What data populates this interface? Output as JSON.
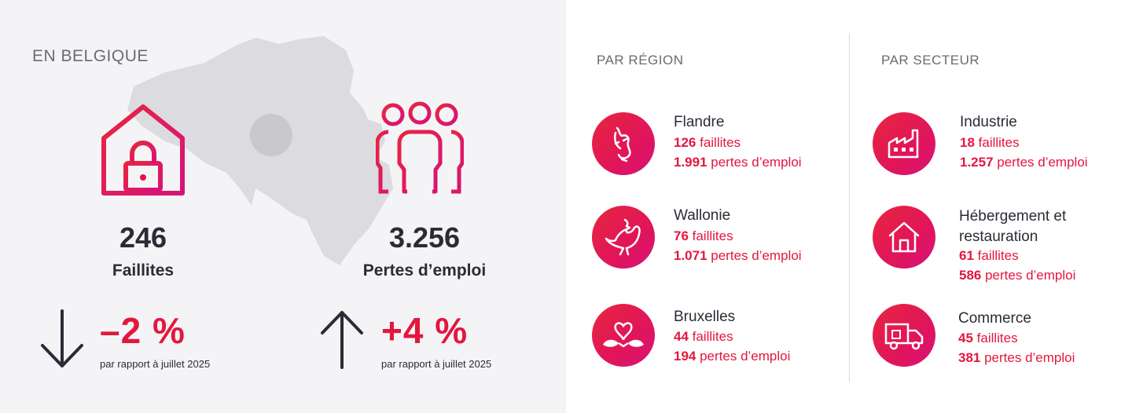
{
  "belgium": {
    "title": "EN BELGIQUE",
    "faillites": {
      "value": "246",
      "label": "Faillites",
      "change": "–2 %",
      "change_sub": "par rapport à juillet 2025",
      "direction": "down"
    },
    "emplois": {
      "value": "3.256",
      "label": "Pertes d’emploi",
      "change": "+4 %",
      "change_sub": "par rapport à juillet 2025",
      "direction": "up"
    }
  },
  "region": {
    "title": "PAR RÉGION",
    "items": [
      {
        "name": "Flandre",
        "faillites_num": "126",
        "faillites_txt": " faillites",
        "emploi_num": "1.991",
        "emploi_txt": " pertes d’emploi",
        "icon": "flemish-lion-icon"
      },
      {
        "name": "Wallonie",
        "faillites_num": "76",
        "faillites_txt": " faillites",
        "emploi_num": "1.071",
        "emploi_txt": " pertes d’emploi",
        "icon": "walloon-rooster-icon"
      },
      {
        "name": "Bruxelles",
        "faillites_num": "44",
        "faillites_txt": " faillites",
        "emploi_num": "194",
        "emploi_txt": " pertes d’emploi",
        "icon": "brussels-iris-icon"
      }
    ]
  },
  "secteur": {
    "title": "PAR SECTEUR",
    "items": [
      {
        "name": "Industrie",
        "faillites_num": "18",
        "faillites_txt": " faillites",
        "emploi_num": "1.257",
        "emploi_txt": " pertes d’emploi",
        "icon": "factory-icon"
      },
      {
        "name_line1": "Hébergement et",
        "name_line2": "restauration",
        "faillites_num": "61",
        "faillites_txt": " faillites",
        "emploi_num": "586",
        "emploi_txt": " pertes d’emploi",
        "icon": "house-icon"
      },
      {
        "name": "Commerce",
        "faillites_num": "45",
        "faillites_txt": " faillites",
        "emploi_num": "381",
        "emploi_txt": " pertes d’emploi",
        "icon": "delivery-truck-icon"
      }
    ]
  },
  "colors": {
    "accent": "#e3173d",
    "panel": "#f4f4f6",
    "text": "#2d2a35",
    "map": "#d9d9de"
  }
}
